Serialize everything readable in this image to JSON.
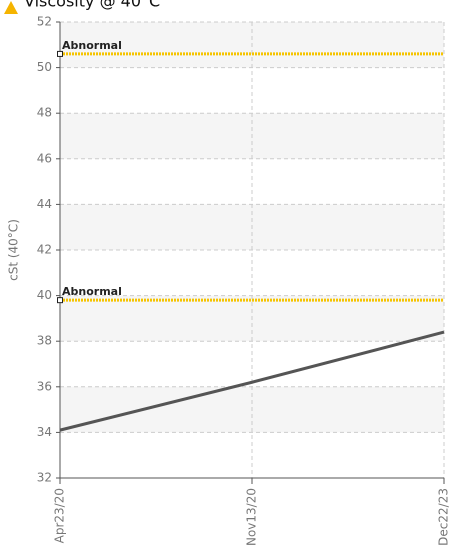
{
  "chart_data": {
    "type": "line",
    "title": "Viscosity @ 40°C",
    "y_label": "cSt (40°C)",
    "categories": [
      "Apr23/20",
      "Nov13/20",
      "Dec22/23"
    ],
    "series": [
      {
        "name": "Viscosity",
        "color": "#555555",
        "values": [
          34.1,
          36.2,
          38.4
        ]
      }
    ],
    "ylim": [
      32,
      52
    ],
    "yticks": [
      32,
      34,
      36,
      38,
      40,
      42,
      44,
      46,
      48,
      50,
      52
    ],
    "grid": true,
    "thresholds": [
      {
        "label": "Abnormal",
        "value": 50.6,
        "color": "#f5c400"
      },
      {
        "label": "Abnormal",
        "value": 39.8,
        "color": "#f5c400"
      }
    ]
  }
}
